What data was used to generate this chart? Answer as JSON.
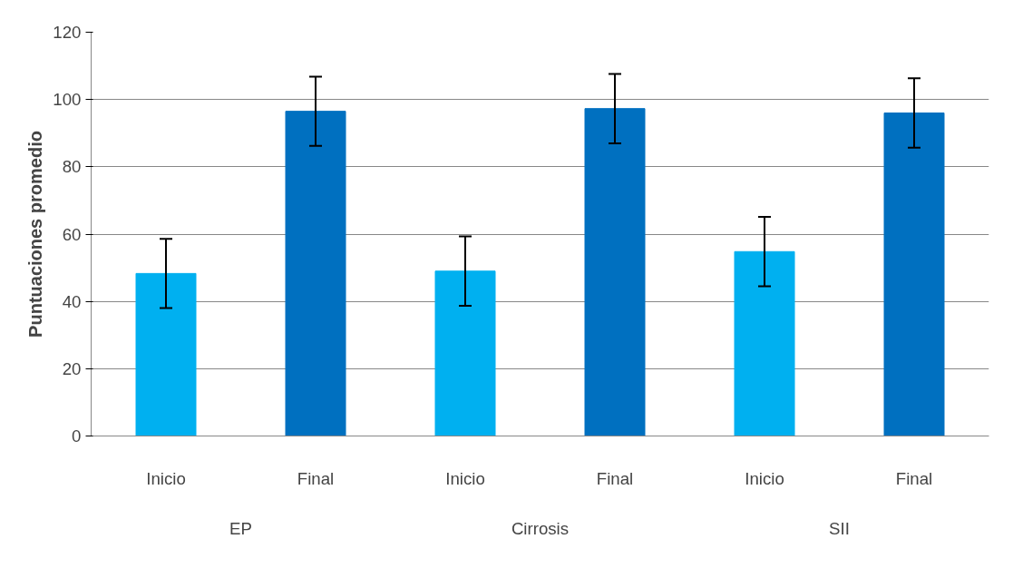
{
  "chart_data": {
    "type": "bar",
    "ylabel": "Puntuaciones promedio",
    "categories": [
      "Inicio",
      "Final",
      "Inicio",
      "Final",
      "Inicio",
      "Final"
    ],
    "values": [
      48.3,
      96.5,
      49.0,
      97.3,
      54.8,
      96.0
    ],
    "colors": [
      "#00b0f0",
      "#0070c0",
      "#00b0f0",
      "#0070c0",
      "#00b0f0",
      "#0070c0"
    ],
    "errors": [
      10.3,
      10.3,
      10.3,
      10.3,
      10.3,
      10.3
    ],
    "annotations": [
      "EP",
      "Cirrosis",
      "SII"
    ],
    "ylim": [
      0,
      120
    ],
    "yticks": [
      0,
      20,
      40,
      60,
      80,
      100,
      120
    ],
    "grid": "y"
  }
}
